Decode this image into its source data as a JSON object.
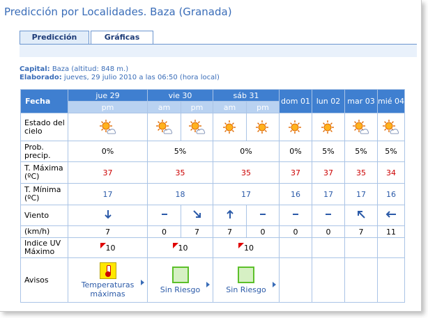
{
  "title": "Predicción por Localidades. Baza (Granada)",
  "tabs": [
    {
      "label": "Predicción",
      "active": true
    },
    {
      "label": "Gráficas",
      "active": false
    }
  ],
  "info": {
    "capital_label": "Capital:",
    "capital_value": " Baza (altitud: 848 m.)",
    "elaborado_label": "Elaborado:",
    "elaborado_value": " jueves, 29 julio 2010 a las 06:50 (hora local)"
  },
  "table": {
    "fecha_label": "Fecha",
    "days": [
      "jue 29",
      "vie 30",
      "sáb 31",
      "dom 01",
      "lun 02",
      "mar 03",
      "mié 04"
    ],
    "periods": [
      "pm",
      "am",
      "pm",
      "am",
      "pm"
    ],
    "rows": {
      "estado_label": "Estado del cielo",
      "prob_label": "Prob. precip.",
      "prob": [
        "0%",
        "5%",
        "0%",
        "0%",
        "5%",
        "5%",
        "5%"
      ],
      "tmax_label": "T. Máxima (ºC)",
      "tmax": [
        "37",
        "35",
        "35",
        "37",
        "37",
        "35",
        "34"
      ],
      "tmin_label": "T. Mínima (ºC)",
      "tmin": [
        "17",
        "18",
        "17",
        "16",
        "17",
        "17",
        "16"
      ],
      "viento_label": "Viento",
      "kmh_label": "(km/h)",
      "wind": [
        "7",
        "0",
        "7",
        "7",
        "0",
        "0",
        "0",
        "7",
        "11"
      ],
      "uv_label": "Indice UV Máximo",
      "uv": [
        "10",
        "10",
        "10"
      ],
      "avisos_label": "Avisos",
      "avisos": [
        "Temperaturas máximas",
        "Sin Riesgo",
        "Sin Riesgo"
      ]
    }
  },
  "colors": {
    "accent": "#3f7fd0",
    "subheader": "#b9d2f1",
    "border": "#aac4e6",
    "temp_max": "#cc0000",
    "temp_min": "#2b5aa8"
  }
}
